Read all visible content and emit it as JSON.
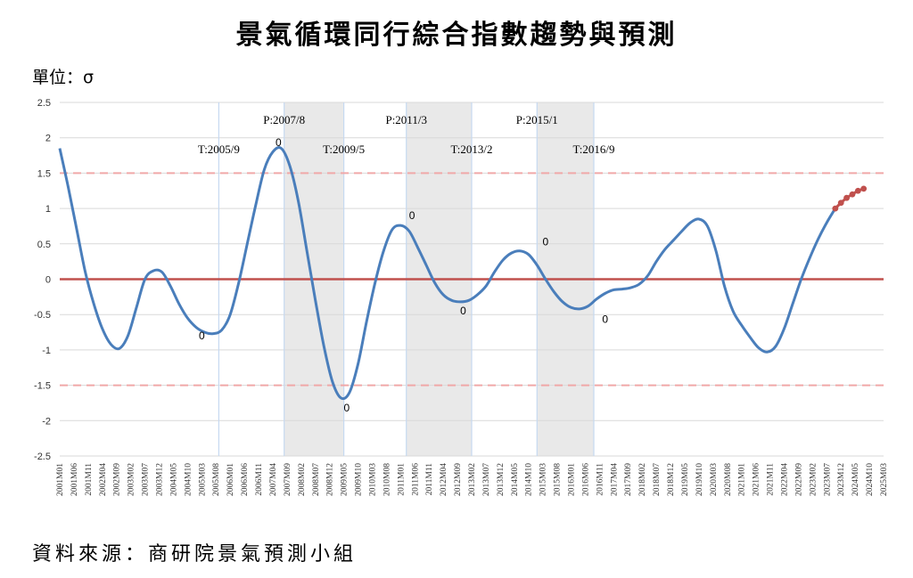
{
  "title": "景氣循環同行綜合指數趨勢與預測",
  "unit_label": "單位：σ",
  "source": "資料來源：商研院景氣預測小組",
  "colors": {
    "series": "#4a7ebb",
    "forecast": "#c0504d",
    "zero_line": "#c0504d",
    "band_line": "#f0a8a8",
    "shade": "#e9e9e9",
    "marker_line": "#c6d9f1",
    "grid": "#d9d9d9"
  },
  "chart_data": {
    "type": "line",
    "ylim": [
      -2.5,
      2.5
    ],
    "yticks": [
      "2.5",
      "2",
      "1.5",
      "1",
      "0.5",
      "0",
      "-0.5",
      "-1",
      "-1.5",
      "-2",
      "-2.5"
    ],
    "grid": true,
    "xtick_labels": [
      "2001M01",
      "2001M06",
      "2001M11",
      "2002M04",
      "2002M09",
      "2003M02",
      "2003M07",
      "2003M12",
      "2004M05",
      "2004M10",
      "2005M03",
      "2005M08",
      "2006M01",
      "2006M06",
      "2006M11",
      "2007M04",
      "2007M09",
      "2008M02",
      "2008M07",
      "2008M12",
      "2009M05",
      "2009M10",
      "2010M03",
      "2010M08",
      "2011M01",
      "2011M06",
      "2011M11",
      "2012M04",
      "2012M09",
      "2013M02",
      "2013M07",
      "2013M12",
      "2014M05",
      "2014M10",
      "2015M03",
      "2015M08",
      "2016M01",
      "2016M06",
      "2016M11",
      "2017M04",
      "2017M09",
      "2018M02",
      "2018M07",
      "2018M12",
      "2019M05",
      "2019M10",
      "2020M03",
      "2020M08",
      "2021M01",
      "2021M06",
      "2021M11",
      "2022M04",
      "2022M09",
      "2023M02",
      "2023M07",
      "2023M12",
      "2024M05",
      "2024M10",
      "2025M03"
    ],
    "reference_lines": [
      0,
      1.5,
      -1.5
    ],
    "recession_shading": [
      [
        "2007-08",
        "2009-05"
      ],
      [
        "2011-03",
        "2013-02"
      ],
      [
        "2015-01",
        "2016-09"
      ]
    ],
    "turning_point_lines": [
      "2005-09",
      "2007-08",
      "2009-05",
      "2011-03",
      "2013-02",
      "2015-01",
      "2016-09"
    ],
    "annotations": [
      {
        "text": "T:2005/9",
        "at": "2005-09",
        "y": 1.78
      },
      {
        "text": "P:2007/8",
        "at": "2007-08",
        "y": 2.2
      },
      {
        "text": "T:2009/5",
        "at": "2009-05",
        "y": 1.78
      },
      {
        "text": "P:2011/3",
        "at": "2011-03",
        "y": 2.2
      },
      {
        "text": "T:2013/2",
        "at": "2013-02",
        "y": 1.78
      },
      {
        "text": "P:2015/1",
        "at": "2015-01",
        "y": 2.2
      },
      {
        "text": "T:2016/9",
        "at": "2016-09",
        "y": 1.78
      }
    ],
    "zero_markers": [
      {
        "text": "0",
        "at": "2005-03",
        "y": -0.85
      },
      {
        "text": "0",
        "at": "2007-06",
        "y": 1.88
      },
      {
        "text": "0",
        "at": "2009-06",
        "y": -1.87
      },
      {
        "text": "0",
        "at": "2011-05",
        "y": 0.85
      },
      {
        "text": "0",
        "at": "2012-11",
        "y": -0.5
      },
      {
        "text": "0",
        "at": "2015-04",
        "y": 0.48
      },
      {
        "text": "0",
        "at": "2017-01",
        "y": -0.62
      }
    ],
    "series": [
      {
        "points": [
          [
            "2001-01",
            1.85
          ],
          [
            "2001-04",
            1.3
          ],
          [
            "2001-07",
            0.7
          ],
          [
            "2001-10",
            0.1
          ],
          [
            "2002-01",
            -0.35
          ],
          [
            "2002-04",
            -0.7
          ],
          [
            "2002-07",
            -0.92
          ],
          [
            "2002-10",
            -0.98
          ],
          [
            "2003-01",
            -0.8
          ],
          [
            "2003-04",
            -0.4
          ],
          [
            "2003-07",
            0.0
          ],
          [
            "2003-10",
            0.12
          ],
          [
            "2004-01",
            0.1
          ],
          [
            "2004-04",
            -0.1
          ],
          [
            "2004-07",
            -0.35
          ],
          [
            "2004-10",
            -0.55
          ],
          [
            "2005-01",
            -0.68
          ],
          [
            "2005-04",
            -0.75
          ],
          [
            "2005-07",
            -0.77
          ],
          [
            "2005-10",
            -0.72
          ],
          [
            "2006-01",
            -0.5
          ],
          [
            "2006-04",
            -0.05
          ],
          [
            "2006-07",
            0.5
          ],
          [
            "2006-10",
            1.05
          ],
          [
            "2007-01",
            1.55
          ],
          [
            "2007-04",
            1.8
          ],
          [
            "2007-07",
            1.85
          ],
          [
            "2007-10",
            1.6
          ],
          [
            "2008-01",
            1.1
          ],
          [
            "2008-04",
            0.4
          ],
          [
            "2008-07",
            -0.3
          ],
          [
            "2008-10",
            -0.95
          ],
          [
            "2009-01",
            -1.45
          ],
          [
            "2009-04",
            -1.68
          ],
          [
            "2009-07",
            -1.6
          ],
          [
            "2009-10",
            -1.2
          ],
          [
            "2010-01",
            -0.6
          ],
          [
            "2010-04",
            -0.05
          ],
          [
            "2010-07",
            0.4
          ],
          [
            "2010-10",
            0.7
          ],
          [
            "2011-01",
            0.76
          ],
          [
            "2011-04",
            0.68
          ],
          [
            "2011-07",
            0.45
          ],
          [
            "2011-10",
            0.2
          ],
          [
            "2012-01",
            -0.05
          ],
          [
            "2012-04",
            -0.22
          ],
          [
            "2012-07",
            -0.3
          ],
          [
            "2012-10",
            -0.32
          ],
          [
            "2013-01",
            -0.3
          ],
          [
            "2013-04",
            -0.22
          ],
          [
            "2013-07",
            -0.1
          ],
          [
            "2013-10",
            0.1
          ],
          [
            "2014-01",
            0.27
          ],
          [
            "2014-04",
            0.37
          ],
          [
            "2014-07",
            0.4
          ],
          [
            "2014-10",
            0.35
          ],
          [
            "2015-01",
            0.2
          ],
          [
            "2015-04",
            0.0
          ],
          [
            "2015-07",
            -0.18
          ],
          [
            "2015-10",
            -0.32
          ],
          [
            "2016-01",
            -0.4
          ],
          [
            "2016-04",
            -0.42
          ],
          [
            "2016-07",
            -0.38
          ],
          [
            "2016-10",
            -0.28
          ],
          [
            "2017-01",
            -0.2
          ],
          [
            "2017-04",
            -0.15
          ],
          [
            "2017-07",
            -0.14
          ],
          [
            "2017-10",
            -0.12
          ],
          [
            "2018-01",
            -0.07
          ],
          [
            "2018-04",
            0.05
          ],
          [
            "2018-07",
            0.25
          ],
          [
            "2018-10",
            0.42
          ],
          [
            "2019-01",
            0.55
          ],
          [
            "2019-04",
            0.68
          ],
          [
            "2019-07",
            0.8
          ],
          [
            "2019-10",
            0.85
          ],
          [
            "2020-01",
            0.75
          ],
          [
            "2020-04",
            0.4
          ],
          [
            "2020-07",
            -0.1
          ],
          [
            "2020-10",
            -0.45
          ],
          [
            "2021-01",
            -0.65
          ],
          [
            "2021-04",
            -0.82
          ],
          [
            "2021-07",
            -0.97
          ],
          [
            "2021-10",
            -1.03
          ],
          [
            "2022-01",
            -0.95
          ],
          [
            "2022-04",
            -0.7
          ],
          [
            "2022-07",
            -0.35
          ],
          [
            "2022-10",
            0.0
          ],
          [
            "2023-01",
            0.3
          ],
          [
            "2023-04",
            0.57
          ],
          [
            "2023-07",
            0.8
          ],
          [
            "2023-10",
            1.0
          ]
        ]
      },
      {
        "points": [
          [
            "2023-10",
            1.0
          ],
          [
            "2023-12",
            1.08
          ],
          [
            "2024-02",
            1.15
          ],
          [
            "2024-04",
            1.2
          ],
          [
            "2024-06",
            1.25
          ],
          [
            "2024-08",
            1.28
          ]
        ]
      }
    ]
  }
}
